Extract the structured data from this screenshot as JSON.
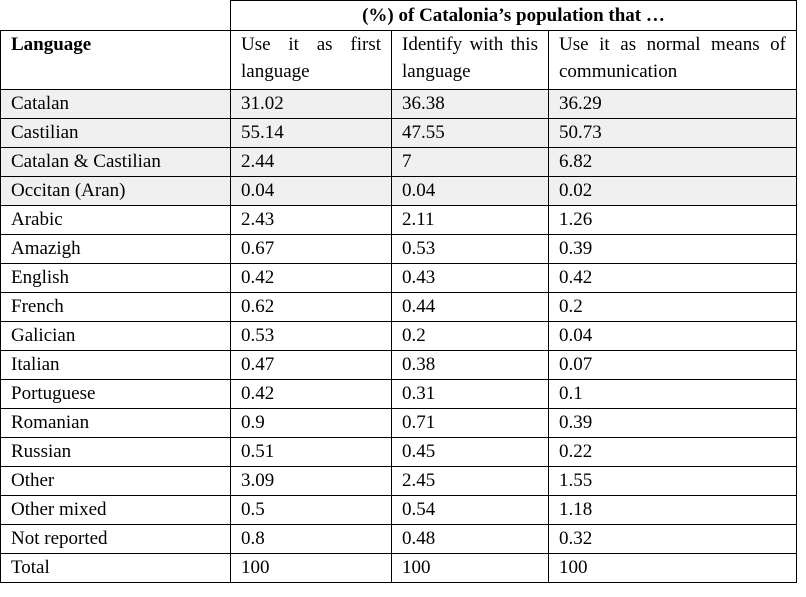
{
  "table": {
    "super_header": "(%) of Catalonia’s population that …",
    "columns": [
      "Language",
      "Use it as first language",
      "Identify with this language",
      "Use it as normal means of communication"
    ],
    "shaded_row_color": "#f0f0f0",
    "rows": [
      {
        "language": "Catalan",
        "first": "31.02",
        "identify": "36.38",
        "normal": "36.29",
        "shaded": true
      },
      {
        "language": "Castilian",
        "first": "55.14",
        "identify": "47.55",
        "normal": "50.73",
        "shaded": true
      },
      {
        "language": "Catalan & Castilian",
        "first": "2.44",
        "identify": "7",
        "normal": "6.82",
        "shaded": true
      },
      {
        "language": "Occitan (Aran)",
        "first": "0.04",
        "identify": "0.04",
        "normal": "0.02",
        "shaded": true
      },
      {
        "language": "Arabic",
        "first": "2.43",
        "identify": "2.11",
        "normal": "1.26",
        "shaded": false
      },
      {
        "language": "Amazigh",
        "first": "0.67",
        "identify": "0.53",
        "normal": "0.39",
        "shaded": false
      },
      {
        "language": "English",
        "first": "0.42",
        "identify": "0.43",
        "normal": "0.42",
        "shaded": false
      },
      {
        "language": "French",
        "first": "0.62",
        "identify": "0.44",
        "normal": "0.2",
        "shaded": false
      },
      {
        "language": "Galician",
        "first": "0.53",
        "identify": "0.2",
        "normal": "0.04",
        "shaded": false
      },
      {
        "language": "Italian",
        "first": "0.47",
        "identify": "0.38",
        "normal": "0.07",
        "shaded": false
      },
      {
        "language": "Portuguese",
        "first": "0.42",
        "identify": "0.31",
        "normal": "0.1",
        "shaded": false
      },
      {
        "language": "Romanian",
        "first": "0.9",
        "identify": "0.71",
        "normal": "0.39",
        "shaded": false
      },
      {
        "language": "Russian",
        "first": "0.51",
        "identify": "0.45",
        "normal": "0.22",
        "shaded": false
      },
      {
        "language": "Other",
        "first": "3.09",
        "identify": "2.45",
        "normal": "1.55",
        "shaded": false
      },
      {
        "language": "Other mixed",
        "first": "0.5",
        "identify": "0.54",
        "normal": "1.18",
        "shaded": false
      },
      {
        "language": "Not reported",
        "first": "0.8",
        "identify": "0.48",
        "normal": "0.32",
        "shaded": false
      },
      {
        "language": "Total",
        "first": "100",
        "identify": "100",
        "normal": "100",
        "shaded": false
      }
    ]
  }
}
